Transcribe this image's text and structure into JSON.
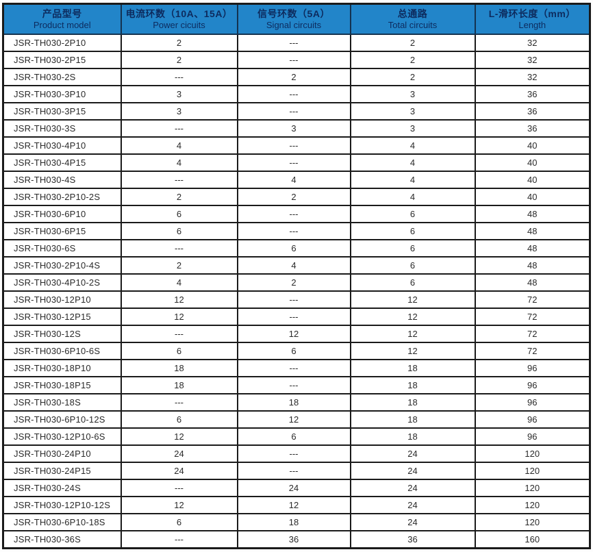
{
  "colors": {
    "header_bg": "#2285c9",
    "header_text": "#0d2b5e",
    "header_border": "#14324f",
    "border": "#1a1a1a",
    "text": "#2a2a2a"
  },
  "table": {
    "columns": [
      {
        "zh": "产品型号",
        "en": "Product model"
      },
      {
        "zh": "电流环数（10A、15A）",
        "en": "Power cicuits"
      },
      {
        "zh": "信号环数（5A）",
        "en": "Signal circuits"
      },
      {
        "zh": "总通路",
        "en": "Total circuits"
      },
      {
        "zh": "L-滑环长度（mm）",
        "en": "Length"
      }
    ],
    "rows": [
      [
        "JSR-TH030-2P10",
        "2",
        "---",
        "2",
        "32"
      ],
      [
        "JSR-TH030-2P15",
        "2",
        "---",
        "2",
        "32"
      ],
      [
        "JSR-TH030-2S",
        "---",
        "2",
        "2",
        "32"
      ],
      [
        "JSR-TH030-3P10",
        "3",
        "---",
        "3",
        "36"
      ],
      [
        "JSR-TH030-3P15",
        "3",
        "---",
        "3",
        "36"
      ],
      [
        "JSR-TH030-3S",
        "---",
        "3",
        "3",
        "36"
      ],
      [
        "JSR-TH030-4P10",
        "4",
        "---",
        "4",
        "40"
      ],
      [
        "JSR-TH030-4P15",
        "4",
        "---",
        "4",
        "40"
      ],
      [
        "JSR-TH030-4S",
        "---",
        "4",
        "4",
        "40"
      ],
      [
        "JSR-TH030-2P10-2S",
        "2",
        "2",
        "4",
        "40"
      ],
      [
        "JSR-TH030-6P10",
        "6",
        "---",
        "6",
        "48"
      ],
      [
        "JSR-TH030-6P15",
        "6",
        "---",
        "6",
        "48"
      ],
      [
        "JSR-TH030-6S",
        "---",
        "6",
        "6",
        "48"
      ],
      [
        "JSR-TH030-2P10-4S",
        "2",
        "4",
        "6",
        "48"
      ],
      [
        "JSR-TH030-4P10-2S",
        "4",
        "2",
        "6",
        "48"
      ],
      [
        "JSR-TH030-12P10",
        "12",
        "---",
        "12",
        "72"
      ],
      [
        "JSR-TH030-12P15",
        "12",
        "---",
        "12",
        "72"
      ],
      [
        "JSR-TH030-12S",
        "---",
        "12",
        "12",
        "72"
      ],
      [
        "JSR-TH030-6P10-6S",
        "6",
        "6",
        "12",
        "72"
      ],
      [
        "JSR-TH030-18P10",
        "18",
        "---",
        "18",
        "96"
      ],
      [
        "JSR-TH030-18P15",
        "18",
        "---",
        "18",
        "96"
      ],
      [
        "JSR-TH030-18S",
        "---",
        "18",
        "18",
        "96"
      ],
      [
        "JSR-TH030-6P10-12S",
        "6",
        "12",
        "18",
        "96"
      ],
      [
        "JSR-TH030-12P10-6S",
        "12",
        "6",
        "18",
        "96"
      ],
      [
        "JSR-TH030-24P10",
        "24",
        "---",
        "24",
        "120"
      ],
      [
        "JSR-TH030-24P15",
        "24",
        "---",
        "24",
        "120"
      ],
      [
        "JSR-TH030-24S",
        "---",
        "24",
        "24",
        "120"
      ],
      [
        "JSR-TH030-12P10-12S",
        "12",
        "12",
        "24",
        "120"
      ],
      [
        "JSR-TH030-6P10-18S",
        "6",
        "18",
        "24",
        "120"
      ],
      [
        "JSR-TH030-36S",
        "---",
        "36",
        "36",
        "160"
      ]
    ]
  }
}
